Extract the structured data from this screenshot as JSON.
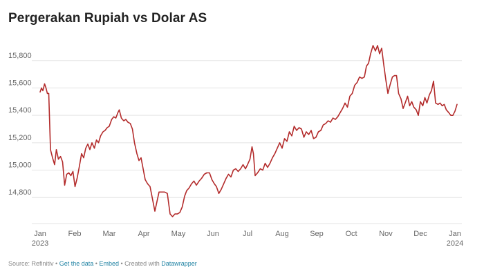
{
  "title": "Pergerakan Rupiah vs Dolar AS",
  "footer": {
    "source": "Source: Refinitiv",
    "get_data": "Get the data",
    "embed": "Embed",
    "created_with": "Created with",
    "datawrapper": "Datawrapper",
    "separator": "•"
  },
  "colors": {
    "line": "#b32b2b",
    "grid": "#e3e3e3",
    "axis_text": "#666666",
    "link": "#1d81a2"
  },
  "chart_data": {
    "type": "line",
    "title": "Pergerakan Rupiah vs Dolar AS",
    "xlabel": "",
    "ylabel": "",
    "xlim": [
      0,
      12.3
    ],
    "ylim": [
      14640,
      15940
    ],
    "grid": "horizontal",
    "y_ticks": [
      {
        "value": 14800,
        "label": "14,800"
      },
      {
        "value": 15000,
        "label": "15,000"
      },
      {
        "value": 15200,
        "label": "15,200"
      },
      {
        "value": 15400,
        "label": "15,400"
      },
      {
        "value": 15600,
        "label": "15,600"
      },
      {
        "value": 15800,
        "label": "15,800"
      }
    ],
    "x_ticks": [
      {
        "pos": 0,
        "label": "Jan",
        "sublabel": "2023"
      },
      {
        "pos": 1,
        "label": "Feb",
        "sublabel": ""
      },
      {
        "pos": 2,
        "label": "Mar",
        "sublabel": ""
      },
      {
        "pos": 3,
        "label": "Apr",
        "sublabel": ""
      },
      {
        "pos": 4,
        "label": "May",
        "sublabel": ""
      },
      {
        "pos": 5,
        "label": "Jun",
        "sublabel": ""
      },
      {
        "pos": 6,
        "label": "Jul",
        "sublabel": ""
      },
      {
        "pos": 7,
        "label": "Aug",
        "sublabel": ""
      },
      {
        "pos": 8,
        "label": "Sep",
        "sublabel": ""
      },
      {
        "pos": 9,
        "label": "Oct",
        "sublabel": ""
      },
      {
        "pos": 10,
        "label": "Nov",
        "sublabel": ""
      },
      {
        "pos": 11,
        "label": "Dec",
        "sublabel": ""
      },
      {
        "pos": 12,
        "label": "Jan",
        "sublabel": "2024"
      }
    ],
    "series": [
      {
        "name": "",
        "points": [
          [
            0.0,
            15570
          ],
          [
            0.04,
            15600
          ],
          [
            0.08,
            15580
          ],
          [
            0.13,
            15630
          ],
          [
            0.17,
            15600
          ],
          [
            0.21,
            15560
          ],
          [
            0.25,
            15560
          ],
          [
            0.3,
            15150
          ],
          [
            0.36,
            15090
          ],
          [
            0.42,
            15040
          ],
          [
            0.47,
            15150
          ],
          [
            0.53,
            15080
          ],
          [
            0.59,
            15100
          ],
          [
            0.65,
            15060
          ],
          [
            0.71,
            14890
          ],
          [
            0.77,
            14970
          ],
          [
            0.83,
            14980
          ],
          [
            0.89,
            14960
          ],
          [
            0.95,
            14990
          ],
          [
            1.01,
            14880
          ],
          [
            1.07,
            14940
          ],
          [
            1.13,
            15020
          ],
          [
            1.2,
            15120
          ],
          [
            1.26,
            15090
          ],
          [
            1.32,
            15160
          ],
          [
            1.38,
            15190
          ],
          [
            1.44,
            15150
          ],
          [
            1.5,
            15200
          ],
          [
            1.57,
            15160
          ],
          [
            1.63,
            15220
          ],
          [
            1.69,
            15200
          ],
          [
            1.75,
            15250
          ],
          [
            1.82,
            15280
          ],
          [
            1.88,
            15290
          ],
          [
            1.94,
            15310
          ],
          [
            2.0,
            15320
          ],
          [
            2.07,
            15370
          ],
          [
            2.13,
            15390
          ],
          [
            2.19,
            15380
          ],
          [
            2.25,
            15420
          ],
          [
            2.29,
            15440
          ],
          [
            2.35,
            15380
          ],
          [
            2.42,
            15360
          ],
          [
            2.48,
            15370
          ],
          [
            2.54,
            15350
          ],
          [
            2.61,
            15340
          ],
          [
            2.67,
            15300
          ],
          [
            2.73,
            15200
          ],
          [
            2.8,
            15120
          ],
          [
            2.86,
            15070
          ],
          [
            2.92,
            15090
          ],
          [
            2.98,
            15010
          ],
          [
            3.04,
            14930
          ],
          [
            3.11,
            14900
          ],
          [
            3.18,
            14880
          ],
          [
            3.25,
            14790
          ],
          [
            3.32,
            14700
          ],
          [
            3.38,
            14770
          ],
          [
            3.44,
            14840
          ],
          [
            3.52,
            14840
          ],
          [
            3.6,
            14840
          ],
          [
            3.68,
            14830
          ],
          [
            3.76,
            14680
          ],
          [
            3.83,
            14660
          ],
          [
            3.9,
            14680
          ],
          [
            3.97,
            14680
          ],
          [
            4.04,
            14690
          ],
          [
            4.11,
            14730
          ],
          [
            4.18,
            14810
          ],
          [
            4.24,
            14850
          ],
          [
            4.31,
            14870
          ],
          [
            4.38,
            14900
          ],
          [
            4.45,
            14920
          ],
          [
            4.52,
            14890
          ],
          [
            4.6,
            14920
          ],
          [
            4.67,
            14940
          ],
          [
            4.75,
            14970
          ],
          [
            4.82,
            14980
          ],
          [
            4.9,
            14980
          ],
          [
            4.97,
            14930
          ],
          [
            5.04,
            14900
          ],
          [
            5.1,
            14880
          ],
          [
            5.17,
            14830
          ],
          [
            5.24,
            14860
          ],
          [
            5.31,
            14900
          ],
          [
            5.38,
            14940
          ],
          [
            5.45,
            14970
          ],
          [
            5.52,
            14950
          ],
          [
            5.59,
            15000
          ],
          [
            5.66,
            15010
          ],
          [
            5.73,
            14990
          ],
          [
            5.8,
            15010
          ],
          [
            5.87,
            15040
          ],
          [
            5.94,
            15010
          ],
          [
            6.0,
            15040
          ],
          [
            6.07,
            15080
          ],
          [
            6.13,
            15170
          ],
          [
            6.17,
            15120
          ],
          [
            6.22,
            14960
          ],
          [
            6.29,
            14980
          ],
          [
            6.37,
            15010
          ],
          [
            6.44,
            15000
          ],
          [
            6.51,
            15050
          ],
          [
            6.58,
            15020
          ],
          [
            6.65,
            15050
          ],
          [
            6.72,
            15090
          ],
          [
            6.79,
            15120
          ],
          [
            6.86,
            15160
          ],
          [
            6.93,
            15200
          ],
          [
            7.0,
            15160
          ],
          [
            7.07,
            15230
          ],
          [
            7.14,
            15210
          ],
          [
            7.21,
            15280
          ],
          [
            7.28,
            15250
          ],
          [
            7.35,
            15320
          ],
          [
            7.42,
            15290
          ],
          [
            7.49,
            15310
          ],
          [
            7.56,
            15300
          ],
          [
            7.63,
            15240
          ],
          [
            7.7,
            15280
          ],
          [
            7.77,
            15260
          ],
          [
            7.84,
            15290
          ],
          [
            7.91,
            15230
          ],
          [
            7.98,
            15240
          ],
          [
            8.05,
            15280
          ],
          [
            8.12,
            15290
          ],
          [
            8.19,
            15330
          ],
          [
            8.26,
            15340
          ],
          [
            8.33,
            15360
          ],
          [
            8.4,
            15350
          ],
          [
            8.47,
            15380
          ],
          [
            8.54,
            15370
          ],
          [
            8.61,
            15390
          ],
          [
            8.68,
            15420
          ],
          [
            8.75,
            15450
          ],
          [
            8.82,
            15490
          ],
          [
            8.89,
            15460
          ],
          [
            8.96,
            15540
          ],
          [
            9.03,
            15560
          ],
          [
            9.1,
            15620
          ],
          [
            9.17,
            15640
          ],
          [
            9.24,
            15680
          ],
          [
            9.31,
            15670
          ],
          [
            9.38,
            15680
          ],
          [
            9.44,
            15760
          ],
          [
            9.5,
            15780
          ],
          [
            9.56,
            15850
          ],
          [
            9.63,
            15910
          ],
          [
            9.7,
            15870
          ],
          [
            9.76,
            15910
          ],
          [
            9.82,
            15850
          ],
          [
            9.88,
            15890
          ],
          [
            9.94,
            15770
          ],
          [
            10.0,
            15660
          ],
          [
            10.06,
            15560
          ],
          [
            10.12,
            15620
          ],
          [
            10.19,
            15680
          ],
          [
            10.25,
            15690
          ],
          [
            10.31,
            15690
          ],
          [
            10.37,
            15560
          ],
          [
            10.44,
            15520
          ],
          [
            10.5,
            15450
          ],
          [
            10.56,
            15490
          ],
          [
            10.63,
            15540
          ],
          [
            10.69,
            15470
          ],
          [
            10.75,
            15500
          ],
          [
            10.81,
            15460
          ],
          [
            10.88,
            15440
          ],
          [
            10.94,
            15400
          ],
          [
            11.0,
            15500
          ],
          [
            11.07,
            15470
          ],
          [
            11.13,
            15530
          ],
          [
            11.19,
            15490
          ],
          [
            11.26,
            15550
          ],
          [
            11.32,
            15580
          ],
          [
            11.38,
            15650
          ],
          [
            11.44,
            15490
          ],
          [
            11.51,
            15480
          ],
          [
            11.57,
            15490
          ],
          [
            11.63,
            15470
          ],
          [
            11.69,
            15480
          ],
          [
            11.75,
            15440
          ],
          [
            11.82,
            15420
          ],
          [
            11.88,
            15400
          ],
          [
            11.94,
            15400
          ],
          [
            12.0,
            15430
          ],
          [
            12.06,
            15480
          ]
        ]
      }
    ]
  }
}
